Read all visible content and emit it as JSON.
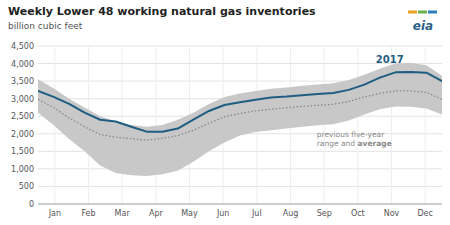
{
  "chart_data": {
    "type": "line",
    "title": "Weekly Lower 48 working natural gas inventories",
    "subtitle": "billion cubic feet",
    "x": [
      0,
      0.4615,
      0.9231,
      1.3846,
      1.8462,
      2.3077,
      2.7692,
      3.2308,
      3.6923,
      4.1538,
      4.6154,
      5.0769,
      5.5385,
      6,
      6.4615,
      6.9231,
      7.3846,
      7.8462,
      8.3077,
      8.7692,
      9.2308,
      9.6923,
      10.1538,
      10.6154,
      11.0769,
      11.5385,
      12
    ],
    "xlim": [
      0,
      12
    ],
    "xticks": [
      {
        "value": 0.5,
        "label": "Jan"
      },
      {
        "value": 1.5,
        "label": "Feb"
      },
      {
        "value": 2.5,
        "label": "Mar"
      },
      {
        "value": 3.5,
        "label": "Apr"
      },
      {
        "value": 4.5,
        "label": "May"
      },
      {
        "value": 5.5,
        "label": "Jun"
      },
      {
        "value": 6.5,
        "label": "Jul"
      },
      {
        "value": 7.5,
        "label": "Aug"
      },
      {
        "value": 8.5,
        "label": "Sep"
      },
      {
        "value": 9.5,
        "label": "Oct"
      },
      {
        "value": 10.5,
        "label": "Nov"
      },
      {
        "value": 11.5,
        "label": "Dec"
      }
    ],
    "ylim": [
      0,
      4500
    ],
    "yticks": [
      0,
      500,
      {
        "value": 1000,
        "label": "1,000"
      },
      {
        "value": 1500,
        "label": "1,500"
      },
      {
        "value": 2000,
        "label": "2,000"
      },
      {
        "value": 2500,
        "label": "2,500"
      },
      {
        "value": 3000,
        "label": "3,000"
      },
      {
        "value": 3500,
        "label": "3,500"
      },
      {
        "value": 4000,
        "label": "4,000"
      },
      {
        "value": 4500,
        "label": "4,500"
      }
    ],
    "grid": true,
    "series": [
      {
        "type": "range",
        "color": "#c8c8c8",
        "high": [
          3550,
          3300,
          3000,
          2750,
          2500,
          2350,
          2250,
          2200,
          2250,
          2400,
          2600,
          2850,
          3050,
          3150,
          3220,
          3280,
          3320,
          3370,
          3400,
          3440,
          3530,
          3680,
          3850,
          4000,
          4020,
          3950,
          3650
        ],
        "low": [
          2600,
          2250,
          1850,
          1500,
          1100,
          880,
          820,
          800,
          850,
          950,
          1200,
          1500,
          1750,
          1950,
          2050,
          2100,
          2150,
          2200,
          2240,
          2270,
          2380,
          2550,
          2700,
          2780,
          2770,
          2720,
          2550
        ]
      },
      {
        "type": "line",
        "color": "#888888",
        "line_style": "dotted",
        "values": [
          2980,
          2750,
          2450,
          2200,
          1980,
          1900,
          1860,
          1820,
          1870,
          1950,
          2100,
          2300,
          2480,
          2580,
          2650,
          2700,
          2740,
          2780,
          2810,
          2840,
          2920,
          3050,
          3150,
          3220,
          3220,
          3180,
          2980
        ]
      },
      {
        "type": "line",
        "color": "#1f5e82",
        "line_style": "solid",
        "values": [
          3220,
          3050,
          2850,
          2600,
          2400,
          2350,
          2200,
          2060,
          2060,
          2150,
          2400,
          2650,
          2820,
          2900,
          2970,
          3030,
          3060,
          3100,
          3130,
          3160,
          3250,
          3400,
          3600,
          3750,
          3760,
          3740,
          3500
        ]
      }
    ],
    "annotation": {
      "text": "2017",
      "color": "#1f5e82"
    },
    "range_label": {
      "line1": "previous five-year",
      "line2": "range and",
      "line2_bold": "average"
    },
    "logo": {
      "text": "eia",
      "color": "#2c5f8a",
      "colors": [
        "#e8a020",
        "#6ab04c",
        "#2980b9"
      ]
    }
  }
}
